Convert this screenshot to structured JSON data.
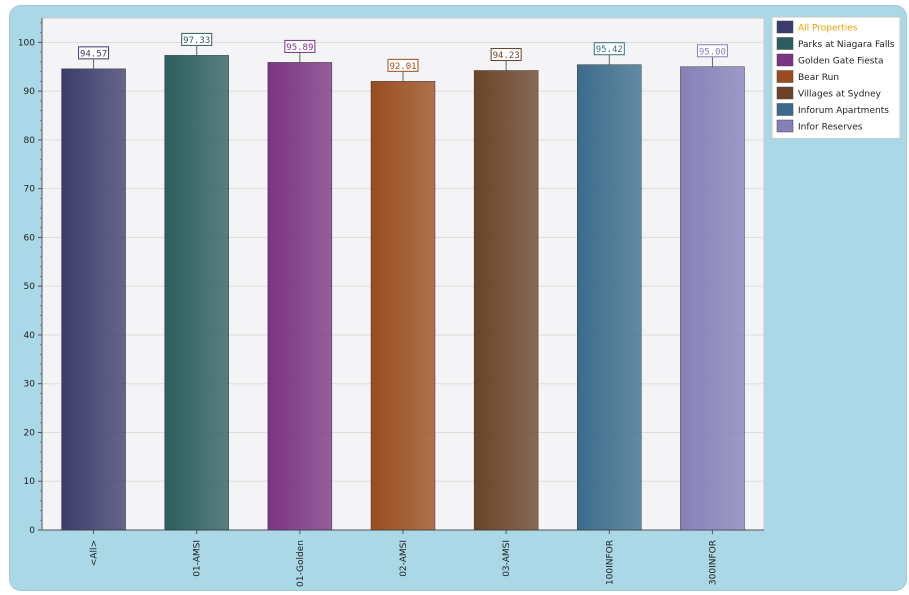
{
  "chart_data": {
    "type": "bar",
    "title": "",
    "xlabel": "",
    "ylabel": "",
    "ylim": [
      0,
      105
    ],
    "yticks": [
      0,
      10,
      20,
      30,
      40,
      50,
      60,
      70,
      80,
      90,
      100
    ],
    "grid": true,
    "legend_position": "top-right",
    "categories": [
      "<All>",
      "01-AMSI",
      "01-Golden",
      "02-AMSI",
      "03-AMSI",
      "100INFOR",
      "300INFOR"
    ],
    "values": [
      94.57,
      97.33,
      95.89,
      92.01,
      94.23,
      95.42,
      95.0
    ],
    "data_labels": [
      "94.57",
      "97.33",
      "95.89",
      "92.01",
      "94.23",
      "95.42",
      "95.00"
    ],
    "series": [
      {
        "name": "All Properties",
        "color": "#3d3d6d",
        "highlight": true
      },
      {
        "name": "Parks at Niagara Falls",
        "color": "#2d5e5f"
      },
      {
        "name": "Golden Gate Fiesta",
        "color": "#7a3482"
      },
      {
        "name": "Bear Run",
        "color": "#9a4d1f"
      },
      {
        "name": "Villages at Sydney",
        "color": "#6a4328"
      },
      {
        "name": "Inforum Apartments",
        "color": "#3b6c8b"
      },
      {
        "name": "Infor Reserves",
        "color": "#8580b8"
      }
    ],
    "highlight_color": "#f0a000"
  }
}
